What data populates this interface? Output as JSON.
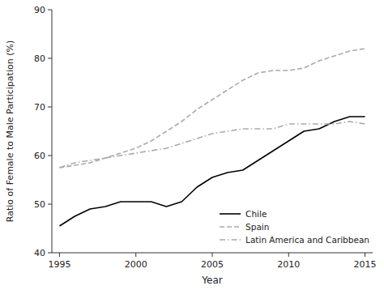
{
  "chart_data": {
    "type": "line",
    "xlabel": "Year",
    "ylabel": "Ratio of Female to Male Participation (%)",
    "x": [
      1995,
      1996,
      1997,
      1998,
      1999,
      2000,
      2001,
      2002,
      2003,
      2004,
      2005,
      2006,
      2007,
      2008,
      2009,
      2010,
      2011,
      2012,
      2013,
      2014,
      2015
    ],
    "series": [
      {
        "name": "Chile",
        "color": "#000000",
        "line_style": "solid",
        "values": [
          45.5,
          47.5,
          49.0,
          49.5,
          50.5,
          50.5,
          50.5,
          49.5,
          50.5,
          53.5,
          55.5,
          56.5,
          57.0,
          59.0,
          61.0,
          63.0,
          65.0,
          65.5,
          67.0,
          68.0,
          68.0
        ]
      },
      {
        "name": "Spain",
        "color": "#aaaaaa",
        "line_style": "dashed",
        "values": [
          57.5,
          58.0,
          58.5,
          59.5,
          60.5,
          61.5,
          63.0,
          65.0,
          67.0,
          69.5,
          71.5,
          73.5,
          75.5,
          77.0,
          77.5,
          77.5,
          78.0,
          79.5,
          80.5,
          81.5,
          82.0
        ]
      },
      {
        "name": "Latin America and Caribbean",
        "color": "#aaaaaa",
        "line_style": "dashdot",
        "values": [
          57.5,
          58.5,
          59.0,
          59.5,
          60.0,
          60.5,
          61.0,
          61.5,
          62.5,
          63.5,
          64.5,
          65.0,
          65.5,
          65.5,
          65.5,
          66.5,
          66.5,
          66.5,
          66.5,
          67.0,
          66.5
        ]
      }
    ],
    "xlim": [
      1994.5,
      2015.5
    ],
    "ylim": [
      40,
      90
    ],
    "xticks": [
      1995,
      2000,
      2005,
      2010,
      2015
    ],
    "yticks": [
      40,
      50,
      60,
      70,
      80,
      90
    ],
    "legend": "lower right"
  }
}
